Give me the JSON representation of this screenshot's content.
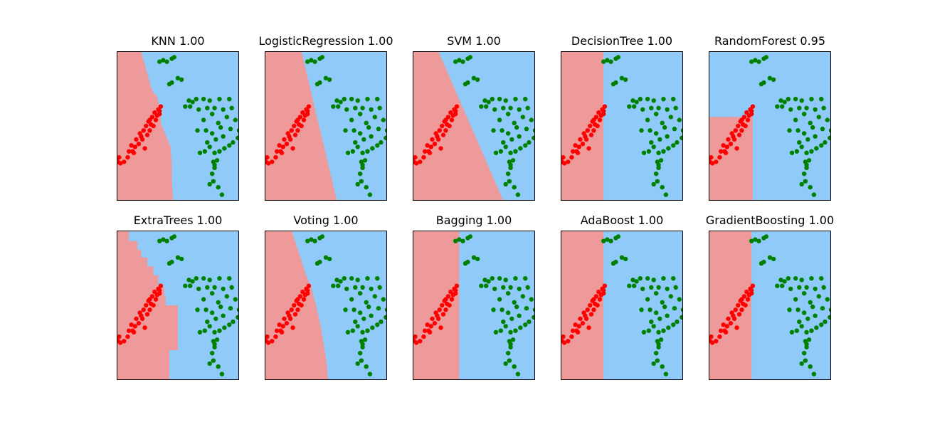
{
  "figure": {
    "background": "#ffffff",
    "colors": {
      "region_class_0": "#ef9a9a",
      "region_class_1": "#90caf9",
      "points_class_0": "#ff0000",
      "points_class_1": "#008000",
      "frame": "#000000"
    }
  },
  "chart_data": {
    "type": "scatter",
    "kind": "classifier decision boundary grid",
    "axes_ticks": "hidden",
    "xlim": [
      0,
      10
    ],
    "ylim": [
      0,
      10
    ],
    "points": {
      "class_0": [
        [
          0.0,
          2.8
        ],
        [
          0.2,
          2.9
        ],
        [
          0.3,
          2.5
        ],
        [
          0.6,
          2.6
        ],
        [
          0.9,
          2.9
        ],
        [
          1.0,
          3.3
        ],
        [
          1.2,
          3.7
        ],
        [
          1.4,
          3.2
        ],
        [
          1.5,
          3.6
        ],
        [
          1.6,
          4.1
        ],
        [
          1.8,
          3.8
        ],
        [
          1.9,
          4.5
        ],
        [
          2.1,
          4.1
        ],
        [
          2.2,
          4.7
        ],
        [
          2.3,
          3.5
        ],
        [
          2.4,
          5.0
        ],
        [
          2.5,
          4.4
        ],
        [
          2.6,
          5.3
        ],
        [
          2.7,
          4.7
        ],
        [
          2.8,
          5.1
        ],
        [
          2.9,
          5.6
        ],
        [
          3.0,
          5.0
        ],
        [
          3.1,
          5.9
        ],
        [
          3.2,
          5.4
        ],
        [
          3.3,
          5.7
        ],
        [
          3.4,
          6.1
        ],
        [
          3.5,
          5.8
        ],
        [
          3.6,
          6.3
        ],
        [
          0.1,
          2.6
        ],
        [
          1.3,
          3.3
        ],
        [
          2.0,
          4.3
        ],
        [
          2.7,
          5.4
        ],
        [
          3.5,
          6.0
        ]
      ],
      "class_1": [
        [
          3.5,
          9.3
        ],
        [
          3.8,
          9.4
        ],
        [
          4.5,
          9.5
        ],
        [
          4.7,
          9.6
        ],
        [
          4.1,
          9.3
        ],
        [
          4.3,
          7.8
        ],
        [
          4.5,
          7.9
        ],
        [
          5.0,
          8.2
        ],
        [
          5.3,
          8.1
        ],
        [
          5.6,
          6.3
        ],
        [
          6.0,
          6.3
        ],
        [
          6.2,
          6.6
        ],
        [
          6.5,
          6.8
        ],
        [
          6.7,
          6.1
        ],
        [
          7.1,
          6.8
        ],
        [
          7.4,
          6.2
        ],
        [
          7.6,
          6.7
        ],
        [
          7.8,
          5.8
        ],
        [
          8.0,
          6.2
        ],
        [
          8.4,
          6.8
        ],
        [
          8.7,
          6.1
        ],
        [
          9.2,
          6.8
        ],
        [
          9.4,
          6.2
        ],
        [
          9.0,
          5.6
        ],
        [
          9.7,
          5.4
        ],
        [
          10.0,
          4.7
        ],
        [
          9.9,
          4.2
        ],
        [
          9.5,
          3.9
        ],
        [
          9.2,
          3.7
        ],
        [
          8.8,
          3.5
        ],
        [
          8.4,
          3.3
        ],
        [
          8.0,
          3.2
        ],
        [
          7.6,
          3.6
        ],
        [
          7.2,
          3.3
        ],
        [
          6.8,
          3.2
        ],
        [
          7.3,
          4.7
        ],
        [
          7.8,
          4.5
        ],
        [
          8.5,
          4.9
        ],
        [
          9.3,
          4.8
        ],
        [
          8.1,
          4.1
        ],
        [
          7.4,
          3.9
        ],
        [
          8.7,
          4.3
        ],
        [
          6.6,
          4.7
        ],
        [
          7.1,
          5.4
        ],
        [
          8.3,
          5.2
        ],
        [
          7.9,
          2.6
        ],
        [
          8.2,
          2.7
        ],
        [
          8.0,
          2.2
        ],
        [
          7.8,
          1.8
        ],
        [
          7.9,
          1.3
        ],
        [
          7.6,
          1.1
        ],
        [
          8.3,
          0.9
        ],
        [
          8.6,
          0.4
        ],
        [
          8.0,
          2.4
        ],
        [
          5.9,
          6.7
        ]
      ]
    },
    "panels": [
      {
        "title": "KNN 1.00",
        "boundary": [
          [
            2.0,
            10
          ],
          [
            2.2,
            9.4
          ],
          [
            2.5,
            8.5
          ],
          [
            2.8,
            7.6
          ],
          [
            3.0,
            7.2
          ],
          [
            3.3,
            7.0
          ],
          [
            3.4,
            6.6
          ],
          [
            3.6,
            6.2
          ],
          [
            3.6,
            5.2
          ],
          [
            3.8,
            4.8
          ],
          [
            4.4,
            3.6
          ],
          [
            4.5,
            2.5
          ],
          [
            4.5,
            1.5
          ],
          [
            4.6,
            0
          ]
        ]
      },
      {
        "title": "LogisticRegression 1.00",
        "boundary": [
          [
            3.0,
            10
          ],
          [
            5.9,
            0
          ]
        ]
      },
      {
        "title": "SVM 1.00",
        "boundary": [
          [
            2.1,
            10
          ],
          [
            7.4,
            0
          ]
        ]
      },
      {
        "title": "DecisionTree 1.00",
        "boundary": [
          [
            3.5,
            10
          ],
          [
            3.5,
            0
          ]
        ]
      },
      {
        "title": "RandomForest 0.95",
        "boundary": [
          [
            0,
            5.6
          ],
          [
            3.6,
            5.6
          ],
          [
            3.6,
            0
          ]
        ]
      },
      {
        "title": "ExtraTrees 1.00",
        "boundary": [
          [
            1.0,
            10
          ],
          [
            1.0,
            9.3
          ],
          [
            1.7,
            9.3
          ],
          [
            1.7,
            8.7
          ],
          [
            2.0,
            8.7
          ],
          [
            2.0,
            8.2
          ],
          [
            2.5,
            8.2
          ],
          [
            2.5,
            7.6
          ],
          [
            3.0,
            7.6
          ],
          [
            3.0,
            7.0
          ],
          [
            3.4,
            7.0
          ],
          [
            3.4,
            6.2
          ],
          [
            3.9,
            6.2
          ],
          [
            3.9,
            5.6
          ],
          [
            4.0,
            5.6
          ],
          [
            4.0,
            5.0
          ],
          [
            5.0,
            5.0
          ],
          [
            5.0,
            2.0
          ],
          [
            4.3,
            2.0
          ],
          [
            4.3,
            0
          ]
        ]
      },
      {
        "title": "Voting 1.00",
        "boundary": [
          [
            2.2,
            10
          ],
          [
            2.8,
            8.5
          ],
          [
            3.3,
            7.2
          ],
          [
            3.8,
            6.2
          ],
          [
            4.2,
            5.0
          ],
          [
            4.6,
            3.5
          ],
          [
            5.0,
            1.5
          ],
          [
            5.2,
            0
          ]
        ]
      },
      {
        "title": "Bagging 1.00",
        "boundary": [
          [
            3.8,
            10
          ],
          [
            3.8,
            0
          ]
        ]
      },
      {
        "title": "AdaBoost 1.00",
        "boundary": [
          [
            3.5,
            10
          ],
          [
            3.5,
            0
          ]
        ]
      },
      {
        "title": "GradientBoosting 1.00",
        "boundary": [
          [
            3.5,
            10
          ],
          [
            3.5,
            0
          ]
        ]
      }
    ]
  }
}
